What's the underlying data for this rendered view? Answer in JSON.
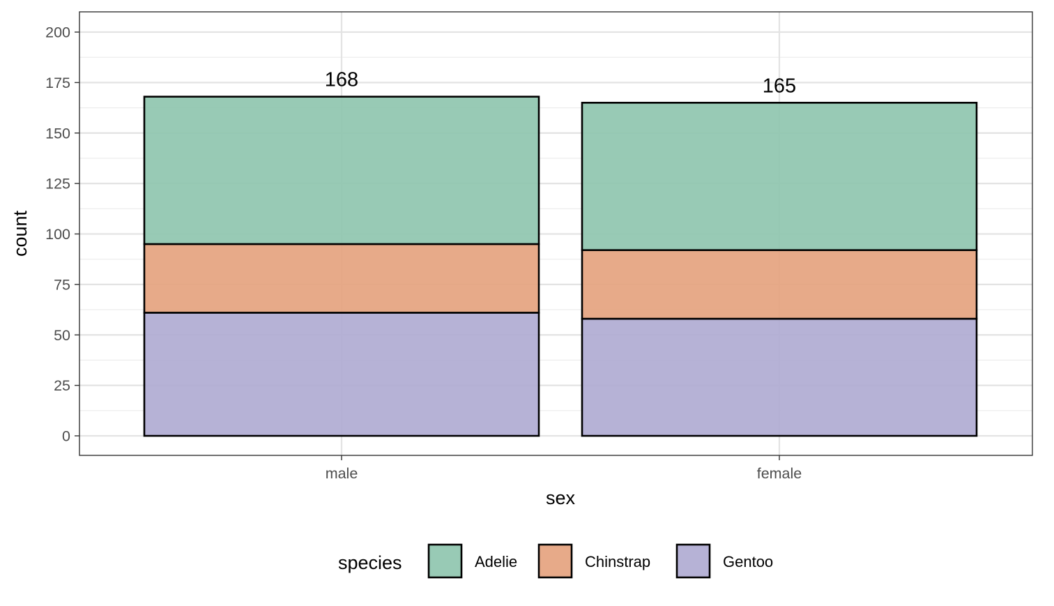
{
  "chart_data": {
    "type": "bar",
    "stacked": true,
    "categories": [
      "male",
      "female"
    ],
    "series": [
      {
        "name": "Gentoo",
        "values": [
          61,
          58
        ],
        "color": "#b0abd2"
      },
      {
        "name": "Chinstrap",
        "values": [
          34,
          34
        ],
        "color": "#e5a37f"
      },
      {
        "name": "Adelie",
        "values": [
          73,
          73
        ],
        "color": "#8fc6af"
      }
    ],
    "totals": [
      168,
      165
    ],
    "xlabel": "sex",
    "ylabel": "count",
    "ylim": [
      0,
      210
    ],
    "yticks": [
      0,
      25,
      50,
      75,
      100,
      125,
      150,
      175,
      200
    ],
    "grid": true,
    "legend": {
      "title": "species",
      "placement": "bottom",
      "items": [
        "Adelie",
        "Chinstrap",
        "Gentoo"
      ]
    }
  }
}
